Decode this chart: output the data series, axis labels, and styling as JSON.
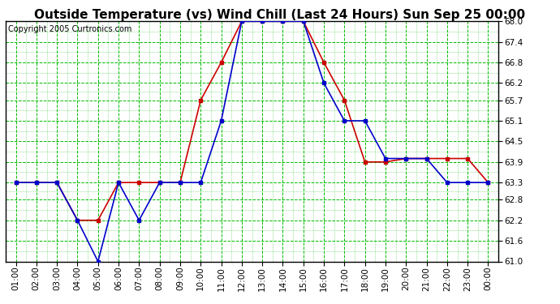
{
  "title": "Outside Temperature (vs) Wind Chill (Last 24 Hours) Sun Sep 25 00:00",
  "copyright": "Copyright 2005 Curtronics.com",
  "hours": [
    "01:00",
    "02:00",
    "03:00",
    "04:00",
    "05:00",
    "06:00",
    "07:00",
    "08:00",
    "09:00",
    "10:00",
    "11:00",
    "12:00",
    "13:00",
    "14:00",
    "15:00",
    "16:00",
    "17:00",
    "18:00",
    "19:00",
    "20:00",
    "21:00",
    "22:00",
    "23:00",
    "00:00"
  ],
  "blue_data": [
    63.3,
    63.3,
    63.3,
    62.2,
    61.0,
    63.3,
    62.2,
    63.3,
    63.3,
    63.3,
    65.1,
    68.0,
    68.0,
    68.0,
    68.0,
    66.2,
    65.1,
    65.1,
    64.0,
    64.0,
    64.0,
    63.3,
    63.3,
    63.3
  ],
  "red_data": [
    63.3,
    63.3,
    63.3,
    62.2,
    62.2,
    63.3,
    63.3,
    63.3,
    63.3,
    65.7,
    66.8,
    68.0,
    68.0,
    68.0,
    68.0,
    66.8,
    65.7,
    63.9,
    63.9,
    64.0,
    64.0,
    64.0,
    64.0,
    63.3
  ],
  "ylim_min": 61.0,
  "ylim_max": 68.0,
  "yticks": [
    61.0,
    61.6,
    62.2,
    62.8,
    63.3,
    63.9,
    64.5,
    65.1,
    65.7,
    66.2,
    66.8,
    67.4,
    68.0
  ],
  "bg_color": "#ffffff",
  "plot_bg": "#ffffff",
  "grid_color": "#00bb00",
  "line_color_blue": "#0000cc",
  "line_color_red": "#cc0000",
  "title_fontsize": 11,
  "copyright_fontsize": 7
}
